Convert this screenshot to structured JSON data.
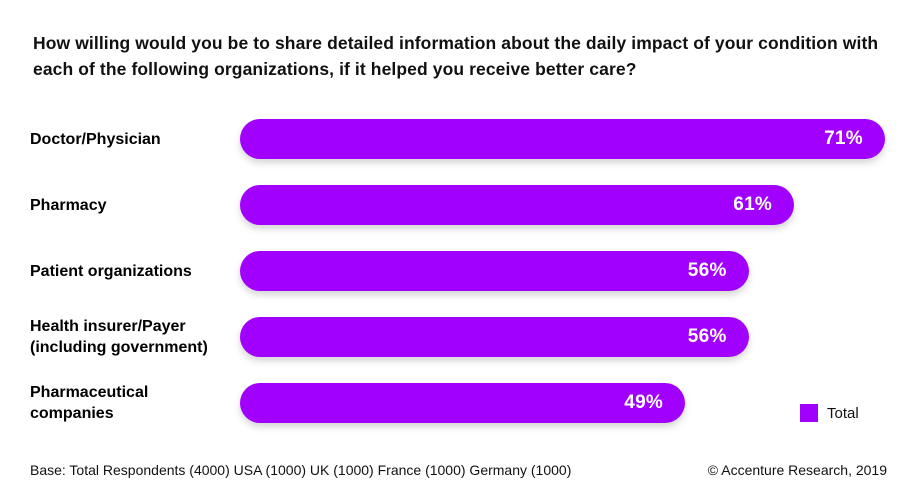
{
  "title": "How willing would you be to share detailed information about the daily impact of your condition with each of the following organizations, if it helped you receive better care?",
  "chart_data": {
    "type": "bar",
    "orientation": "horizontal",
    "categories": [
      "Doctor/Physician",
      "Pharmacy",
      "Patient organizations",
      "Health insurer/Payer\n(including government)",
      "Pharmaceutical\ncompanies"
    ],
    "values": [
      71,
      61,
      56,
      56,
      49
    ],
    "value_suffix": "%",
    "value_labels": [
      "71%",
      "61%",
      "56%",
      "56%",
      "49%"
    ],
    "series_name": "Total",
    "scale_max": 71,
    "grid": false,
    "axes_shown": false,
    "legend_position": "bottom-right",
    "bar_color": "#a100ff",
    "value_text_color": "#ffffff"
  },
  "legend": {
    "label": "Total"
  },
  "footer": {
    "base_note": "Base: Total Respondents (4000) USA (1000) UK (1000) France (1000) Germany (1000)",
    "copyright": "© Accenture Research, 2019"
  },
  "colors": {
    "background": "#ffffff",
    "accent_purple": "#a100ff",
    "title_text": "#111111"
  }
}
